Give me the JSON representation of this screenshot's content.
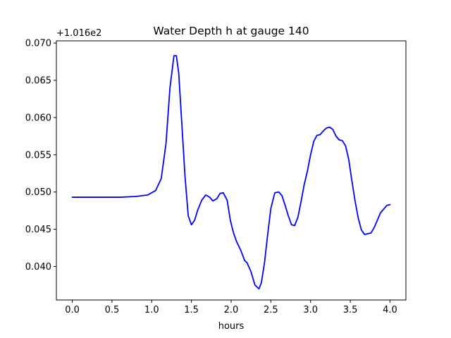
{
  "chart_data": {
    "type": "line",
    "title": "Water Depth h at gauge 140",
    "xlabel": "hours",
    "ylabel": "",
    "offset_label": "+1.016e2",
    "xlim": [
      -0.2,
      4.2
    ],
    "ylim": [
      0.0355,
      0.0703
    ],
    "xticks": [
      0.0,
      0.5,
      1.0,
      1.5,
      2.0,
      2.5,
      3.0,
      3.5,
      4.0
    ],
    "xtick_labels": [
      "0.0",
      "0.5",
      "1.0",
      "1.5",
      "2.0",
      "2.5",
      "3.0",
      "3.5",
      "4.0"
    ],
    "yticks": [
      0.04,
      0.045,
      0.05,
      0.055,
      0.06,
      0.065,
      0.07
    ],
    "ytick_labels": [
      "0.040",
      "0.045",
      "0.050",
      "0.055",
      "0.060",
      "0.065",
      "0.070"
    ],
    "grid": false,
    "series": [
      {
        "color": "#0000ff",
        "x": [
          0.0,
          0.3,
          0.6,
          0.8,
          0.95,
          1.05,
          1.12,
          1.18,
          1.23,
          1.28,
          1.31,
          1.34,
          1.38,
          1.42,
          1.46,
          1.5,
          1.54,
          1.58,
          1.63,
          1.68,
          1.73,
          1.77,
          1.82,
          1.86,
          1.9,
          1.95,
          1.99,
          2.03,
          2.07,
          2.12,
          2.17,
          2.2,
          2.25,
          2.3,
          2.35,
          2.38,
          2.42,
          2.46,
          2.5,
          2.55,
          2.6,
          2.64,
          2.68,
          2.72,
          2.76,
          2.8,
          2.84,
          2.88,
          2.92,
          2.96,
          3.0,
          3.04,
          3.08,
          3.12,
          3.16,
          3.2,
          3.24,
          3.28,
          3.32,
          3.36,
          3.4,
          3.44,
          3.48,
          3.52,
          3.56,
          3.6,
          3.64,
          3.68,
          3.72,
          3.76,
          3.8,
          3.84,
          3.88,
          3.92,
          3.96,
          4.0
        ],
        "y": [
          0.0493,
          0.0493,
          0.0493,
          0.0494,
          0.0496,
          0.0502,
          0.0518,
          0.0565,
          0.064,
          0.0683,
          0.0683,
          0.066,
          0.059,
          0.052,
          0.0468,
          0.0456,
          0.0462,
          0.0476,
          0.0489,
          0.0496,
          0.0493,
          0.0488,
          0.0491,
          0.0498,
          0.0499,
          0.0489,
          0.0462,
          0.0445,
          0.0433,
          0.0422,
          0.0408,
          0.0405,
          0.0393,
          0.0375,
          0.037,
          0.0378,
          0.0405,
          0.0443,
          0.0478,
          0.0499,
          0.05,
          0.0495,
          0.0482,
          0.0468,
          0.0456,
          0.0455,
          0.0466,
          0.0487,
          0.051,
          0.0528,
          0.055,
          0.0568,
          0.0576,
          0.0577,
          0.0582,
          0.0586,
          0.0587,
          0.0584,
          0.0575,
          0.057,
          0.0569,
          0.0562,
          0.0544,
          0.0515,
          0.0488,
          0.0465,
          0.0449,
          0.0443,
          0.0444,
          0.0445,
          0.0452,
          0.0462,
          0.0472,
          0.0477,
          0.0482,
          0.0483
        ]
      }
    ]
  }
}
